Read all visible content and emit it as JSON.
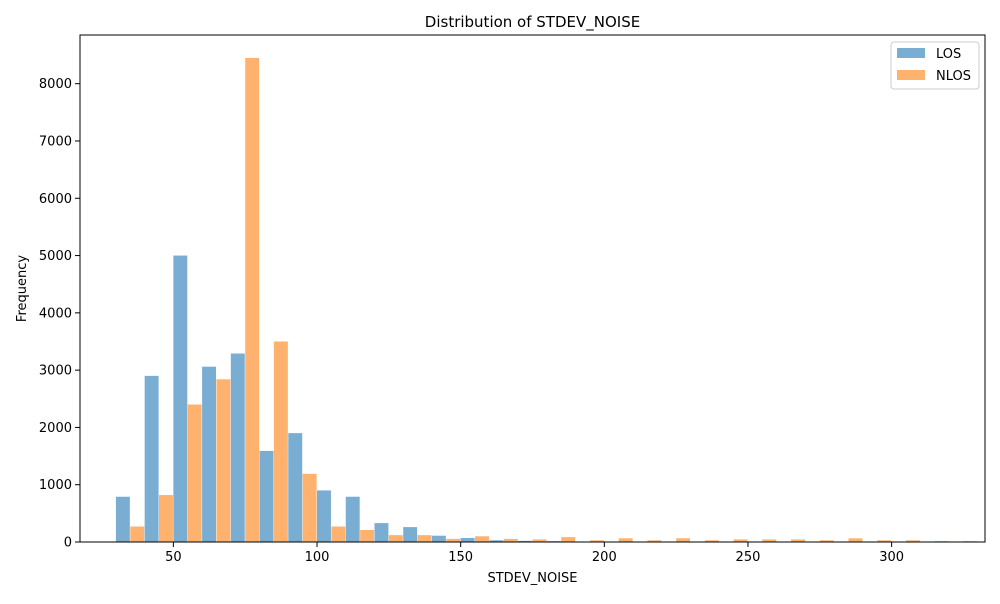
{
  "chart_data": {
    "type": "bar",
    "title": "Distribution of STDEV_NOISE",
    "xlabel": "STDEV_NOISE",
    "ylabel": "Frequency",
    "xlim": [
      17.5,
      332.5
    ],
    "ylim": [
      0,
      8850
    ],
    "x_ticks": [
      50,
      100,
      150,
      200,
      250,
      300
    ],
    "y_ticks": [
      0,
      1000,
      2000,
      3000,
      4000,
      5000,
      6000,
      7000,
      8000
    ],
    "bin_width": 10,
    "grid": false,
    "legend_position": "top-right",
    "x": [
      30,
      40,
      50,
      60,
      70,
      80,
      90,
      100,
      110,
      120,
      130,
      140,
      150,
      160,
      170,
      180,
      190,
      200,
      210,
      220,
      230,
      240,
      250,
      260,
      270,
      280,
      290,
      300,
      310,
      320
    ],
    "series": [
      {
        "name": "LOS",
        "color": "#1f77b4",
        "values": [
          790,
          2900,
          5000,
          3060,
          3290,
          1590,
          1900,
          900,
          790,
          330,
          260,
          110,
          70,
          30,
          20,
          15,
          0,
          0,
          0,
          0,
          0,
          0,
          0,
          0,
          0,
          0,
          0,
          0,
          0,
          0
        ]
      },
      {
        "name": "NLOS",
        "color": "#ff7f0e",
        "values": [
          270,
          820,
          2400,
          2840,
          8450,
          3500,
          1190,
          270,
          210,
          120,
          120,
          55,
          100,
          55,
          45,
          85,
          30,
          65,
          30,
          65,
          30,
          45,
          45,
          45,
          30,
          65,
          30,
          30,
          15,
          15
        ]
      }
    ]
  }
}
